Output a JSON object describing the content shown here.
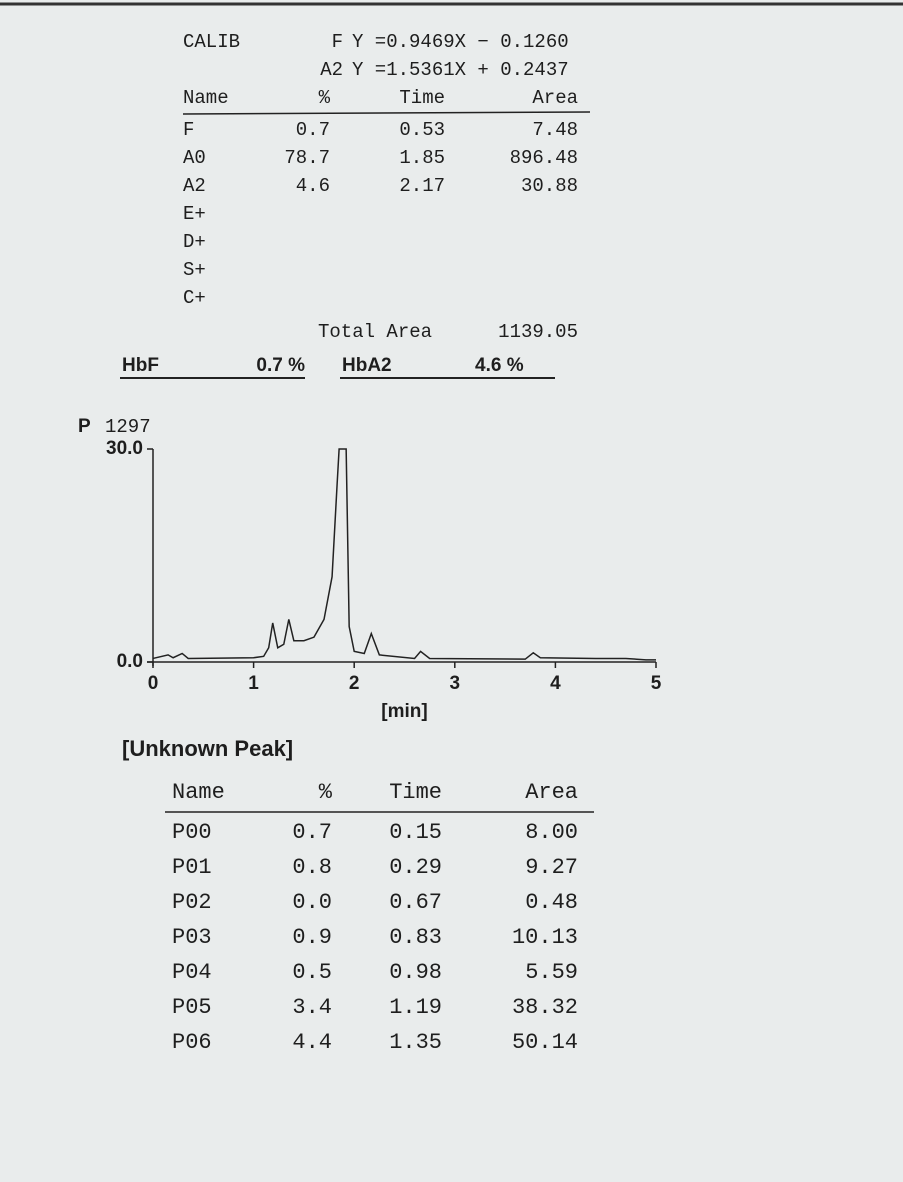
{
  "calib": {
    "label": "CALIB",
    "equations": [
      {
        "name": "F",
        "formula": "Y =0.9469X − 0.1260"
      },
      {
        "name": "A2",
        "formula": "Y =1.5361X + 0.2437"
      }
    ]
  },
  "results": {
    "columns": [
      "Name",
      "%",
      "Time",
      "Area"
    ],
    "rows": [
      [
        "F",
        "0.7",
        "0.53",
        "7.48"
      ],
      [
        "A0",
        "78.7",
        "1.85",
        "896.48"
      ],
      [
        "A2",
        "4.6",
        "2.17",
        "30.88"
      ],
      [
        "E+"
      ],
      [
        "D+"
      ],
      [
        "S+"
      ],
      [
        "C+"
      ]
    ]
  },
  "total": {
    "label": "Total Area",
    "value": "1139.05"
  },
  "summary": [
    {
      "label": "HbF",
      "value": "0.7 %"
    },
    {
      "label": "HbA2",
      "value": "4.6 %"
    }
  ],
  "chart_marker": "P",
  "chart_data": {
    "type": "line",
    "title": "1297",
    "x_label": "[min]",
    "x": [
      0,
      0.15,
      0.2,
      0.29,
      0.35,
      1.0,
      1.1,
      1.15,
      1.19,
      1.24,
      1.3,
      1.35,
      1.4,
      1.5,
      1.6,
      1.7,
      1.78,
      1.83,
      1.85,
      1.92,
      1.95,
      2.0,
      2.1,
      2.17,
      2.25,
      2.6,
      2.66,
      2.75,
      3.7,
      3.78,
      3.85,
      4.4,
      4.7,
      4.9,
      5
    ],
    "values": [
      0.5,
      1.0,
      0.6,
      1.2,
      0.5,
      0.6,
      0.8,
      2,
      5.5,
      2,
      2.5,
      6,
      3,
      3,
      3.5,
      6,
      12,
      25,
      30,
      30,
      5,
      1.5,
      1.2,
      4,
      1,
      0.5,
      1.5,
      0.5,
      0.4,
      1.3,
      0.6,
      0.5,
      0.5,
      0.3,
      0.3
    ],
    "color": "#222222",
    "xlim": [
      0,
      5
    ],
    "ylim": [
      0,
      30
    ],
    "xticks": [
      0,
      1,
      2,
      3,
      4,
      5
    ],
    "yticks": [
      {
        "value": 0,
        "label": "0.0"
      },
      {
        "value": 30,
        "label": "30.0"
      }
    ]
  },
  "unknown_peaks": {
    "title": "[Unknown Peak]",
    "columns": [
      "Name",
      "%",
      "Time",
      "Area"
    ],
    "rows": [
      [
        "P00",
        "0.7",
        "0.15",
        "8.00"
      ],
      [
        "P01",
        "0.8",
        "0.29",
        "9.27"
      ],
      [
        "P02",
        "0.0",
        "0.67",
        "0.48"
      ],
      [
        "P03",
        "0.9",
        "0.83",
        "10.13"
      ],
      [
        "P04",
        "0.5",
        "0.98",
        "5.59"
      ],
      [
        "P05",
        "3.4",
        "1.19",
        "38.32"
      ],
      [
        "P06",
        "4.4",
        "1.35",
        "50.14"
      ]
    ]
  }
}
